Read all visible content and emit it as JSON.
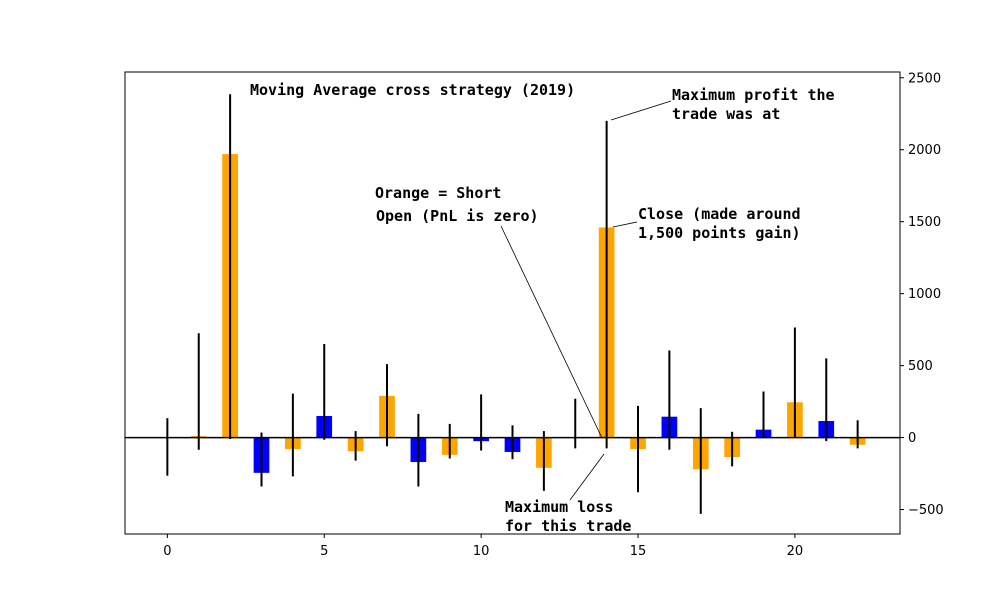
{
  "chart_data": {
    "type": "bar",
    "title": "Moving Average cross strategy (2019)",
    "xlabel": "",
    "ylabel": "",
    "y_axis_side": "right",
    "xlim": [
      -1.35,
      23.35
    ],
    "ylim": [
      -670,
      2540
    ],
    "xticks": [
      0,
      5,
      10,
      15,
      20
    ],
    "yticks": [
      -500,
      0,
      500,
      1000,
      1500,
      2000,
      2500
    ],
    "grid": false,
    "colors": {
      "short": "#ffa500",
      "long": "#0000ff",
      "range_line": "#000000",
      "axis": "#000000"
    },
    "bars": [
      {
        "x": 0,
        "value": 0,
        "high": 135,
        "low": -265,
        "side": "short"
      },
      {
        "x": 1,
        "value": 10,
        "high": 725,
        "low": -85,
        "side": "short"
      },
      {
        "x": 2,
        "value": 1970,
        "high": 2385,
        "low": -10,
        "side": "short"
      },
      {
        "x": 3,
        "value": -245,
        "high": 35,
        "low": -340,
        "side": "long"
      },
      {
        "x": 4,
        "value": -80,
        "high": 305,
        "low": -270,
        "side": "short"
      },
      {
        "x": 5,
        "value": 150,
        "high": 650,
        "low": -15,
        "side": "long"
      },
      {
        "x": 6,
        "value": -95,
        "high": 45,
        "low": -160,
        "side": "short"
      },
      {
        "x": 7,
        "value": 290,
        "high": 510,
        "low": -60,
        "side": "short"
      },
      {
        "x": 8,
        "value": -170,
        "high": 165,
        "low": -340,
        "side": "long"
      },
      {
        "x": 9,
        "value": -120,
        "high": 95,
        "low": -145,
        "side": "short"
      },
      {
        "x": 10,
        "value": -25,
        "high": 300,
        "low": -90,
        "side": "long"
      },
      {
        "x": 11,
        "value": -100,
        "high": 85,
        "low": -150,
        "side": "long"
      },
      {
        "x": 12,
        "value": -210,
        "high": 45,
        "low": -370,
        "side": "short"
      },
      {
        "x": 13,
        "value": 0,
        "high": 270,
        "low": -75,
        "side": "short"
      },
      {
        "x": 14,
        "value": 1460,
        "high": 2200,
        "low": -75,
        "side": "short"
      },
      {
        "x": 15,
        "value": -80,
        "high": 220,
        "low": -380,
        "side": "short"
      },
      {
        "x": 16,
        "value": 145,
        "high": 605,
        "low": -85,
        "side": "long"
      },
      {
        "x": 17,
        "value": -220,
        "high": 205,
        "low": -530,
        "side": "short"
      },
      {
        "x": 18,
        "value": -135,
        "high": 40,
        "low": -200,
        "side": "short"
      },
      {
        "x": 19,
        "value": 55,
        "high": 320,
        "low": -5,
        "side": "long"
      },
      {
        "x": 20,
        "value": 245,
        "high": 765,
        "low": -5,
        "side": "short"
      },
      {
        "x": 21,
        "value": 115,
        "high": 550,
        "low": -25,
        "side": "long"
      },
      {
        "x": 22,
        "value": -50,
        "high": 120,
        "low": -75,
        "side": "short"
      }
    ],
    "annotations": [
      {
        "lines": [
          "Maximum profit the",
          "trade was at"
        ],
        "target": {
          "x": 14,
          "y": 2200
        }
      },
      {
        "lines": [
          "Orange = Short"
        ],
        "target": null
      },
      {
        "lines": [
          "Open (PnL is zero)"
        ],
        "target": {
          "x": 14,
          "y": 0
        }
      },
      {
        "lines": [
          "Close (made around",
          "1,500 points gain)"
        ],
        "target": {
          "x": 14,
          "y": 1460
        }
      },
      {
        "lines": [
          "Maximum loss",
          "for  this trade"
        ],
        "target": {
          "x": 14,
          "y": -75
        }
      }
    ]
  }
}
